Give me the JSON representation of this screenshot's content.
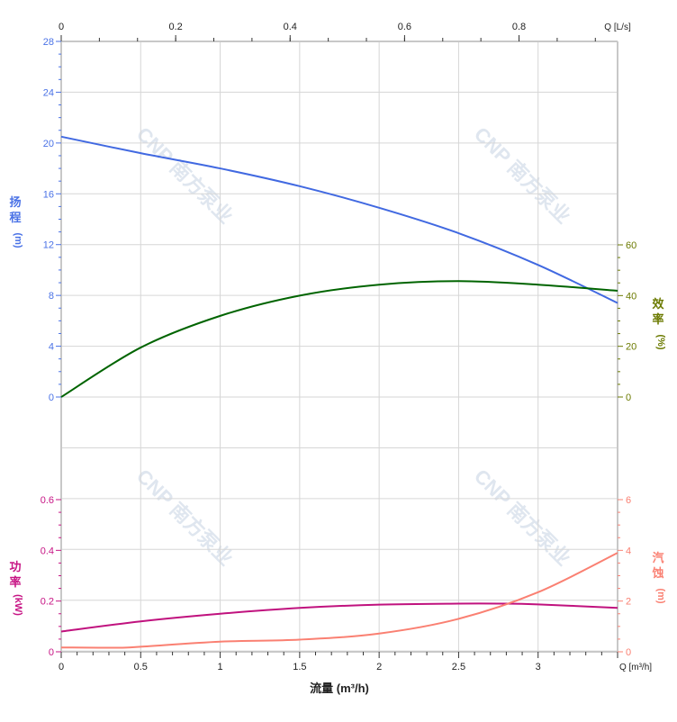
{
  "chart_data": [
    {
      "type": "line",
      "panel": "upper",
      "x_label_bottom": "流量 (m³/h)",
      "x_unit_bottom": "Q [m³/h]",
      "x_unit_top": "Q [L/s]",
      "xlim": [
        0,
        3.5
      ],
      "x_ticks": [
        "0",
        "0.5",
        "1",
        "1.5",
        "2",
        "2.5",
        "3"
      ],
      "x_top_ticks": [
        "0",
        "0.2",
        "0.4",
        "0.6",
        "0.8"
      ],
      "grid": true,
      "left_axis": {
        "label": [
          "扬",
          "程",
          "(m)"
        ],
        "ylim": [
          0,
          28
        ],
        "ticks": [
          "0",
          "4",
          "8",
          "12",
          "16",
          "20",
          "24",
          "28"
        ],
        "color": "#4a72e6"
      },
      "right_axis": {
        "label": [
          "效",
          "率",
          "(%)"
        ],
        "ylim": [
          0,
          60
        ],
        "ticks": [
          "0",
          "20",
          "40",
          "60"
        ],
        "color": "#6b7a00"
      },
      "series": [
        {
          "axis": "left",
          "color": "#4169e1",
          "x": [
            0,
            0.5,
            1,
            1.5,
            2,
            2.5,
            3,
            3.5
          ],
          "y": [
            20.5,
            19.2,
            18.0,
            16.6,
            14.9,
            12.9,
            10.4,
            7.4
          ]
        },
        {
          "axis": "right",
          "color": "#006400",
          "x": [
            0,
            0.5,
            1,
            1.5,
            2,
            2.5,
            3,
            3.5
          ],
          "y": [
            0,
            19.5,
            32,
            40,
            44.3,
            45.7,
            44.3,
            41.9
          ]
        }
      ]
    },
    {
      "type": "line",
      "panel": "lower",
      "xlim": [
        0,
        3.5
      ],
      "grid": true,
      "left_axis": {
        "label": [
          "功",
          "率",
          "(kW)"
        ],
        "ylim": [
          0,
          0.6
        ],
        "ticks": [
          "0",
          "0.2",
          "0.4",
          "0.6"
        ],
        "color": "#c71585"
      },
      "right_axis": {
        "label": [
          "汽",
          "蚀",
          "(m)"
        ],
        "ylim": [
          0,
          6
        ],
        "ticks": [
          "0",
          "2",
          "4",
          "6"
        ],
        "color": "#fa8072"
      },
      "series": [
        {
          "axis": "left",
          "color": "#c0127e",
          "x": [
            0,
            0.5,
            1,
            1.5,
            2,
            2.5,
            2.75,
            3,
            3.5
          ],
          "y": [
            0.08,
            0.12,
            0.15,
            0.173,
            0.186,
            0.19,
            0.19,
            0.187,
            0.173
          ]
        },
        {
          "axis": "right",
          "color": "#fa8072",
          "x": [
            0,
            0.35,
            0.5,
            1,
            1.5,
            2,
            2.5,
            3,
            3.5
          ],
          "y": [
            0.17,
            0.16,
            0.2,
            0.4,
            0.48,
            0.72,
            1.3,
            2.35,
            3.9
          ]
        }
      ]
    }
  ],
  "watermark": "CNP 南方泵业"
}
